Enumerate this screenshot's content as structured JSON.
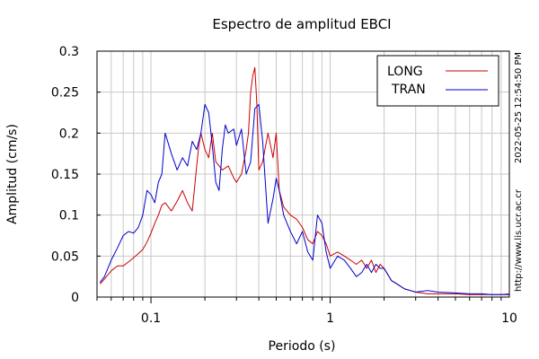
{
  "chart_data": {
    "type": "line",
    "title": "Espectro de amplitud EBCI",
    "xlabel": "Periodo (s)",
    "ylabel": "Amplitud (cm/s)",
    "x_scale": "log",
    "xlim": [
      0.05,
      10
    ],
    "ylim": [
      0,
      0.3
    ],
    "grid": true,
    "legend_position": "top-right",
    "x_ticks": [
      {
        "value": 0.1,
        "label": "0.1"
      },
      {
        "value": 1,
        "label": "1"
      },
      {
        "value": 10,
        "label": "10"
      }
    ],
    "y_ticks": [
      {
        "value": 0,
        "label": "0"
      },
      {
        "value": 0.05,
        "label": "0.05"
      },
      {
        "value": 0.1,
        "label": "0.1"
      },
      {
        "value": 0.15,
        "label": "0.15"
      },
      {
        "value": 0.2,
        "label": "0.2"
      },
      {
        "value": 0.25,
        "label": "0.25"
      },
      {
        "value": 0.3,
        "label": "0.3"
      }
    ],
    "series": [
      {
        "name": "LONG",
        "color": "#cc0000",
        "x": [
          0.052,
          0.055,
          0.06,
          0.065,
          0.07,
          0.075,
          0.08,
          0.085,
          0.09,
          0.095,
          0.1,
          0.105,
          0.11,
          0.115,
          0.12,
          0.13,
          0.14,
          0.15,
          0.16,
          0.17,
          0.18,
          0.185,
          0.19,
          0.2,
          0.21,
          0.22,
          0.23,
          0.24,
          0.25,
          0.27,
          0.29,
          0.3,
          0.32,
          0.34,
          0.35,
          0.36,
          0.37,
          0.38,
          0.39,
          0.4,
          0.42,
          0.45,
          0.48,
          0.5,
          0.52,
          0.55,
          0.6,
          0.65,
          0.7,
          0.75,
          0.8,
          0.85,
          0.9,
          0.95,
          1.0,
          1.1,
          1.2,
          1.3,
          1.4,
          1.5,
          1.6,
          1.7,
          1.8,
          1.9,
          2.0,
          2.2,
          2.4,
          2.6,
          2.8,
          3.0,
          3.5,
          4.0,
          5.0,
          6.0,
          7.0,
          8.0,
          9.0,
          10.0
        ],
        "y": [
          0.016,
          0.022,
          0.032,
          0.038,
          0.038,
          0.043,
          0.048,
          0.053,
          0.058,
          0.067,
          0.078,
          0.09,
          0.1,
          0.112,
          0.115,
          0.105,
          0.117,
          0.13,
          0.115,
          0.105,
          0.16,
          0.185,
          0.2,
          0.18,
          0.17,
          0.2,
          0.165,
          0.16,
          0.155,
          0.16,
          0.145,
          0.14,
          0.15,
          0.18,
          0.2,
          0.25,
          0.27,
          0.28,
          0.235,
          0.155,
          0.165,
          0.2,
          0.17,
          0.2,
          0.13,
          0.11,
          0.1,
          0.095,
          0.085,
          0.07,
          0.065,
          0.08,
          0.075,
          0.065,
          0.05,
          0.055,
          0.05,
          0.045,
          0.04,
          0.045,
          0.035,
          0.045,
          0.03,
          0.04,
          0.035,
          0.02,
          0.015,
          0.01,
          0.008,
          0.006,
          0.004,
          0.004,
          0.004,
          0.003,
          0.003,
          0.003,
          0.003,
          0.004
        ]
      },
      {
        "name": "TRAN",
        "color": "#0000cc",
        "x": [
          0.052,
          0.055,
          0.06,
          0.065,
          0.07,
          0.075,
          0.08,
          0.085,
          0.09,
          0.095,
          0.1,
          0.105,
          0.11,
          0.115,
          0.12,
          0.13,
          0.14,
          0.15,
          0.16,
          0.17,
          0.18,
          0.19,
          0.2,
          0.21,
          0.22,
          0.23,
          0.24,
          0.25,
          0.26,
          0.27,
          0.29,
          0.3,
          0.32,
          0.34,
          0.36,
          0.38,
          0.4,
          0.42,
          0.45,
          0.48,
          0.5,
          0.52,
          0.55,
          0.6,
          0.65,
          0.7,
          0.75,
          0.8,
          0.85,
          0.9,
          0.95,
          1.0,
          1.1,
          1.2,
          1.3,
          1.4,
          1.5,
          1.6,
          1.7,
          1.8,
          1.9,
          2.0,
          2.2,
          2.4,
          2.6,
          2.8,
          3.0,
          3.5,
          4.0,
          5.0,
          6.0,
          7.0,
          8.0,
          9.0,
          10.0
        ],
        "y": [
          0.018,
          0.025,
          0.045,
          0.06,
          0.075,
          0.08,
          0.078,
          0.085,
          0.1,
          0.13,
          0.125,
          0.115,
          0.14,
          0.15,
          0.2,
          0.175,
          0.155,
          0.17,
          0.16,
          0.19,
          0.18,
          0.2,
          0.235,
          0.225,
          0.185,
          0.14,
          0.13,
          0.18,
          0.21,
          0.2,
          0.205,
          0.185,
          0.205,
          0.15,
          0.165,
          0.23,
          0.235,
          0.19,
          0.09,
          0.12,
          0.145,
          0.13,
          0.1,
          0.08,
          0.065,
          0.08,
          0.055,
          0.045,
          0.1,
          0.09,
          0.055,
          0.035,
          0.05,
          0.045,
          0.035,
          0.025,
          0.03,
          0.04,
          0.03,
          0.04,
          0.035,
          0.035,
          0.02,
          0.015,
          0.01,
          0.008,
          0.006,
          0.008,
          0.006,
          0.005,
          0.004,
          0.004,
          0.003,
          0.003,
          0.003
        ]
      }
    ]
  },
  "timestamp": "2022-05-25 12:54:50 PM",
  "site_url": "http://www.lis.ucr.ac.cr"
}
